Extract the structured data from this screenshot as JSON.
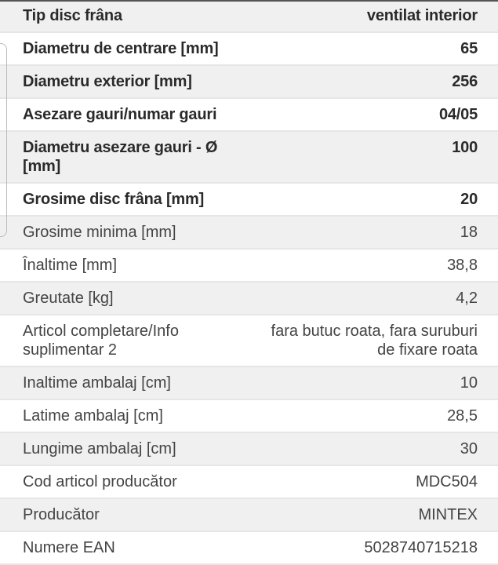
{
  "specs": [
    {
      "label": "Tip disc frâna",
      "value": "ventilat interior",
      "emphasis": true
    },
    {
      "label": "Diametru de centrare [mm]",
      "value": "65",
      "emphasis": true
    },
    {
      "label": "Diametru exterior [mm]",
      "value": "256",
      "emphasis": true
    },
    {
      "label": "Asezare gauri/numar gauri",
      "value": "04/05",
      "emphasis": true
    },
    {
      "label": "Diametru asezare gauri - Ø [mm]",
      "value": "100",
      "emphasis": true
    },
    {
      "label": "Grosime disc frâna [mm]",
      "value": "20",
      "emphasis": true
    },
    {
      "label": "Grosime minima [mm]",
      "value": "18",
      "emphasis": false
    },
    {
      "label": "Înaltime [mm]",
      "value": "38,8",
      "emphasis": false
    },
    {
      "label": "Greutate [kg]",
      "value": "4,2",
      "emphasis": false
    },
    {
      "label": "Articol completare/Info suplimentar 2",
      "value": "fara butuc roata, fara suruburi de fixare roata",
      "emphasis": false
    },
    {
      "label": "Inaltime ambalaj [cm]",
      "value": "10",
      "emphasis": false
    },
    {
      "label": "Latime ambalaj [cm]",
      "value": "28,5",
      "emphasis": false
    },
    {
      "label": "Lungime ambalaj [cm]",
      "value": "30",
      "emphasis": false
    },
    {
      "label": "Cod articol producător",
      "value": "MDC504",
      "emphasis": false
    },
    {
      "label": "Producător",
      "value": "MINTEX",
      "emphasis": false
    },
    {
      "label": "Numere EAN",
      "value": "5028740715218",
      "emphasis": false
    }
  ]
}
